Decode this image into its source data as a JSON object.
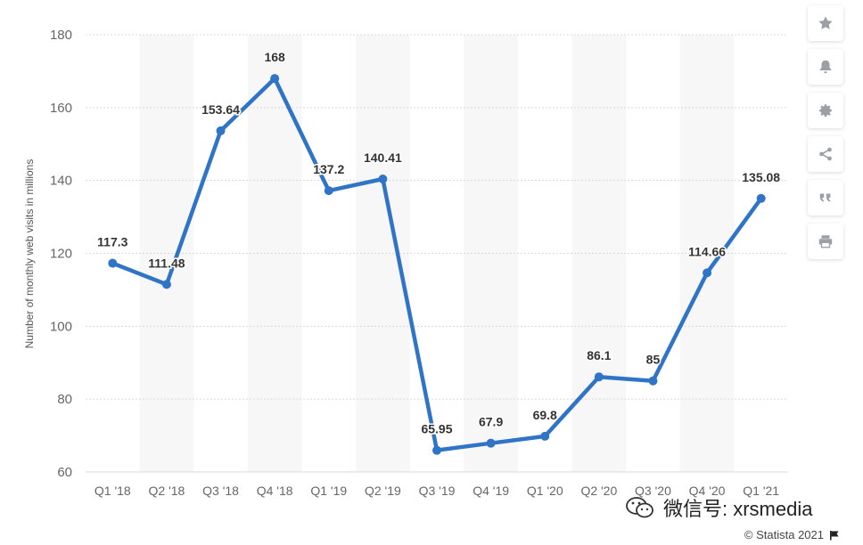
{
  "chart_data": {
    "type": "line",
    "ylabel": "Number of monthly web visits in millions",
    "ylim": [
      60,
      180
    ],
    "yticks": [
      60,
      80,
      100,
      120,
      140,
      160,
      180
    ],
    "categories": [
      "Q1 '18",
      "Q2 '18",
      "Q3 '18",
      "Q4 '18",
      "Q1 '19",
      "Q2 '19",
      "Q3 '19",
      "Q4 '19",
      "Q1 '20",
      "Q2 '20",
      "Q3 '20",
      "Q4 '20",
      "Q1 '21"
    ],
    "series": [
      {
        "values": [
          117.3,
          111.48,
          153.64,
          168,
          137.2,
          140.41,
          65.95,
          67.9,
          69.8,
          86.1,
          85,
          114.66,
          135.08
        ]
      }
    ],
    "data_labels": [
      "117.3",
      "111.48",
      "153.64",
      "168",
      "137.2",
      "140.41",
      "65.95",
      "67.9",
      "69.8",
      "86.1",
      "85",
      "114.66",
      "135.08"
    ],
    "line_color": "#2f74c6",
    "grid": true
  },
  "toolbar": {
    "buttons": [
      {
        "icon": "star-icon"
      },
      {
        "icon": "bell-icon"
      },
      {
        "icon": "gear-icon"
      },
      {
        "icon": "share-icon"
      },
      {
        "icon": "quote-icon"
      },
      {
        "icon": "print-icon"
      }
    ]
  },
  "credit": {
    "text": "© Statista 2021"
  },
  "watermark": {
    "text": "微信号: xrsmedia"
  }
}
